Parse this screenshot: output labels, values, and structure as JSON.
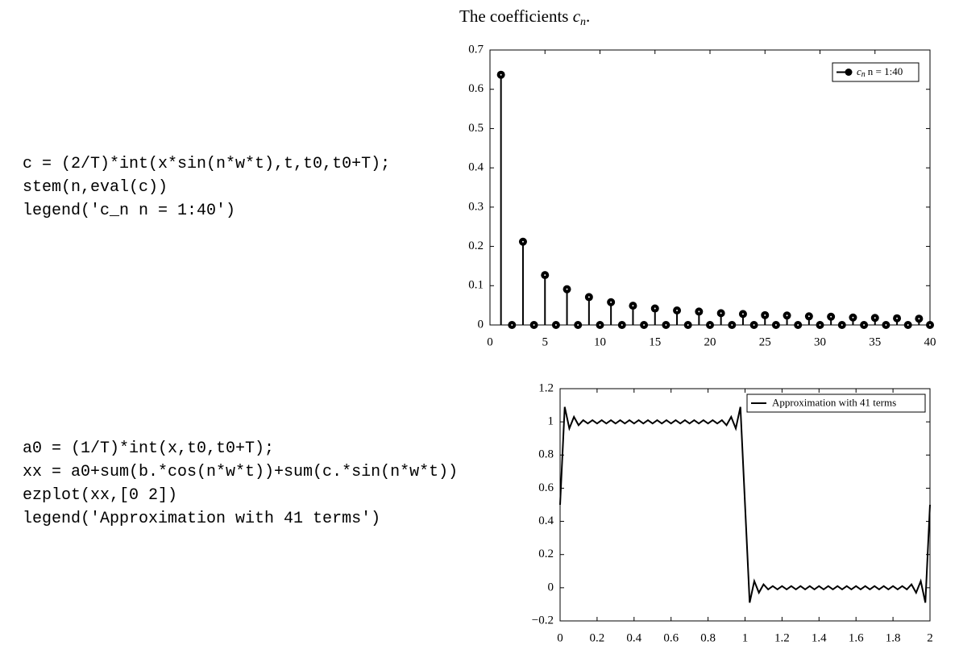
{
  "code_blocks": [
    [
      "c = (2/T)*int(x*sin(n*w*t),t,t0,t0+T);",
      "stem(n,eval(c))",
      "legend('c_n n = 1:40')"
    ],
    [
      "a0 = (1/T)*int(x,t0,t0+T);",
      "xx = a0+sum(b.*cos(n*w*t))+sum(c.*sin(n*w*t))",
      "ezplot(xx,[0 2])",
      "legend('Approximation with 41 terms')"
    ]
  ],
  "figures": [
    {
      "type": "stem",
      "title": [
        "The coefficients ",
        "c",
        "n",
        "."
      ],
      "legend": [
        "c",
        "n",
        "n = 1:40"
      ],
      "x": [
        1,
        2,
        3,
        4,
        5,
        6,
        7,
        8,
        9,
        10,
        11,
        12,
        13,
        14,
        15,
        16,
        17,
        18,
        19,
        20,
        21,
        22,
        23,
        24,
        25,
        26,
        27,
        28,
        29,
        30,
        31,
        32,
        33,
        34,
        35,
        36,
        37,
        38,
        39,
        40
      ],
      "values": [
        0.637,
        0,
        0.212,
        0,
        0.127,
        0,
        0.091,
        0,
        0.071,
        0,
        0.058,
        0,
        0.049,
        0,
        0.042,
        0,
        0.037,
        0,
        0.034,
        0,
        0.03,
        0,
        0.028,
        0,
        0.025,
        0,
        0.024,
        0,
        0.022,
        0,
        0.021,
        0,
        0.019,
        0,
        0.018,
        0,
        0.017,
        0,
        0.016,
        0
      ],
      "color": "#000000",
      "xlim": [
        0,
        40
      ],
      "xticks": [
        0,
        5,
        10,
        15,
        20,
        25,
        30,
        35,
        40
      ],
      "ylim": [
        0,
        0.7
      ],
      "yticks": [
        0,
        0.1,
        0.2,
        0.3,
        0.4,
        0.5,
        0.6,
        0.7
      ]
    },
    {
      "type": "line",
      "legend": [
        "Approximation with 41 terms"
      ],
      "x": [
        0,
        0.025,
        0.05,
        0.075,
        0.1,
        0.125,
        0.15,
        0.175,
        0.2,
        0.225,
        0.25,
        0.275,
        0.3,
        0.325,
        0.35,
        0.375,
        0.4,
        0.425,
        0.45,
        0.475,
        0.5,
        0.525,
        0.55,
        0.575,
        0.6,
        0.625,
        0.65,
        0.675,
        0.7,
        0.725,
        0.75,
        0.775,
        0.8,
        0.825,
        0.85,
        0.875,
        0.9,
        0.925,
        0.95,
        0.975,
        1,
        1.025,
        1.05,
        1.075,
        1.1,
        1.125,
        1.15,
        1.175,
        1.2,
        1.225,
        1.25,
        1.275,
        1.3,
        1.325,
        1.35,
        1.375,
        1.4,
        1.425,
        1.45,
        1.475,
        1.5,
        1.525,
        1.55,
        1.575,
        1.6,
        1.625,
        1.65,
        1.675,
        1.7,
        1.725,
        1.75,
        1.775,
        1.8,
        1.825,
        1.85,
        1.875,
        1.9,
        1.925,
        1.95,
        1.975,
        2
      ],
      "values": [
        0.5,
        1.09,
        0.96,
        1.03,
        0.98,
        1.01,
        0.99,
        1.01,
        0.99,
        1.01,
        0.99,
        1.01,
        0.99,
        1.01,
        0.99,
        1.01,
        0.99,
        1.01,
        0.99,
        1.01,
        0.99,
        1.01,
        0.99,
        1.01,
        0.99,
        1.01,
        0.99,
        1.01,
        0.99,
        1.01,
        0.99,
        1.01,
        0.99,
        1.01,
        0.99,
        1.01,
        0.98,
        1.03,
        0.96,
        1.09,
        0.5,
        -0.09,
        0.04,
        -0.03,
        0.02,
        -0.01,
        0.01,
        -0.01,
        0.01,
        -0.01,
        0.01,
        -0.01,
        0.01,
        -0.01,
        0.01,
        -0.01,
        0.01,
        -0.01,
        0.01,
        -0.01,
        0.01,
        -0.01,
        0.01,
        -0.01,
        0.01,
        -0.01,
        0.01,
        -0.01,
        0.01,
        -0.01,
        0.01,
        -0.01,
        0.01,
        -0.01,
        0.01,
        -0.01,
        0.02,
        -0.03,
        0.04,
        -0.09,
        0.5
      ],
      "color": "#000000",
      "xlim": [
        0,
        2
      ],
      "xticks": [
        0,
        0.2,
        0.4,
        0.6,
        0.8,
        1,
        1.2,
        1.4,
        1.6,
        1.8,
        2
      ],
      "ylim": [
        -0.2,
        1.2
      ],
      "yticks": [
        {
          "value": -0.2,
          "label": "−0.2"
        },
        0,
        0.2,
        0.4,
        0.6,
        0.8,
        1,
        1.2
      ]
    }
  ]
}
